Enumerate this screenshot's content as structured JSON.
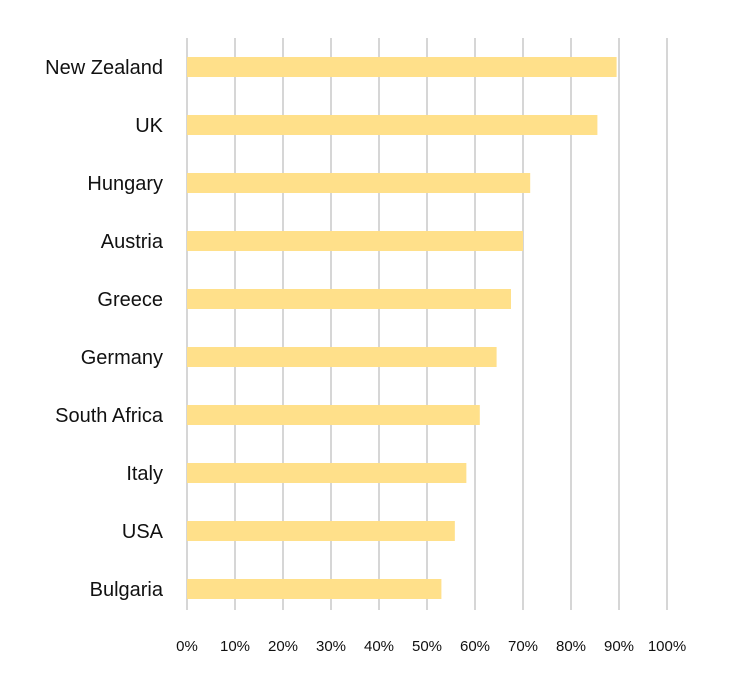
{
  "chart_data": {
    "type": "bar",
    "orientation": "horizontal",
    "categories": [
      "New Zealand",
      "UK",
      "Hungary",
      "Austria",
      "Greece",
      "Germany",
      "South Africa",
      "Italy",
      "USA",
      "Bulgaria"
    ],
    "values": [
      89.5,
      85.5,
      71.5,
      70,
      67.5,
      64.5,
      61,
      58.2,
      55.8,
      53
    ],
    "value_unit": "%",
    "xlim": [
      0,
      100
    ],
    "x_ticks": [
      0,
      10,
      20,
      30,
      40,
      50,
      60,
      70,
      80,
      90,
      100
    ],
    "x_tick_labels": [
      "0%",
      "10%",
      "20%",
      "30%",
      "40%",
      "50%",
      "60%",
      "70%",
      "80%",
      "90%",
      "100%"
    ],
    "grid": "vertical",
    "legend": "none",
    "colors": {
      "bar": "#ffe08a",
      "grid": "#d6d6d6",
      "text": "#111111"
    }
  }
}
